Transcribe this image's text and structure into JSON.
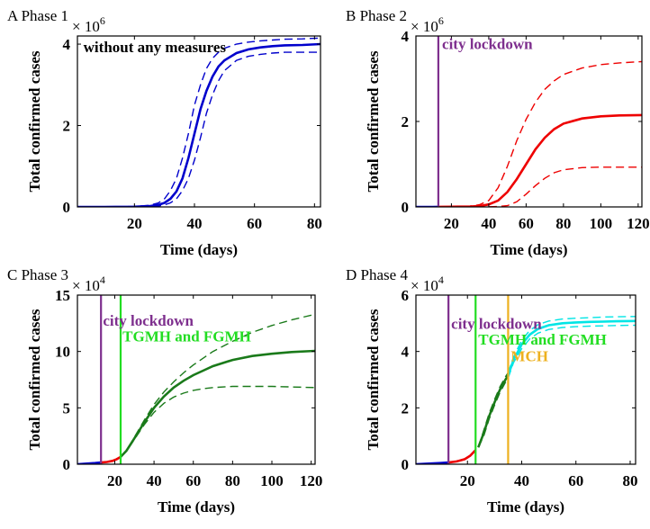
{
  "chart_data": [
    {
      "type": "line",
      "title": "A Phase 1",
      "xlabel": "Time (days)",
      "ylabel": "Total confirmed cases",
      "multiplier": "10",
      "multiplier_exp": "6",
      "xlim": [
        1,
        82
      ],
      "ylim": [
        0,
        4.2
      ],
      "xticks": [
        "20",
        "40",
        "60",
        "80"
      ],
      "yticks": [
        "0",
        "2",
        "4"
      ],
      "annotations": [
        {
          "text": "without any measures",
          "color": "#000000",
          "x": 3,
          "y": 3.8
        }
      ],
      "vlines": [],
      "series": [
        {
          "color": "#0000cc",
          "style": "solid",
          "x": [
            1,
            10,
            20,
            25,
            28,
            30,
            32,
            34,
            36,
            38,
            40,
            42,
            44,
            46,
            48,
            50,
            54,
            58,
            62,
            66,
            70,
            76,
            82
          ],
          "y": [
            0,
            0,
            0.005,
            0.02,
            0.05,
            0.1,
            0.2,
            0.38,
            0.7,
            1.2,
            1.8,
            2.4,
            2.85,
            3.2,
            3.45,
            3.6,
            3.78,
            3.87,
            3.92,
            3.95,
            3.97,
            3.98,
            4.0
          ]
        },
        {
          "color": "#0000cc",
          "style": "dashed",
          "x": [
            1,
            10,
            20,
            25,
            28,
            30,
            32,
            34,
            36,
            38,
            40,
            42,
            44,
            46,
            48,
            50,
            54,
            58,
            62,
            66,
            70,
            76,
            82
          ],
          "y": [
            0,
            0,
            0.01,
            0.04,
            0.1,
            0.2,
            0.4,
            0.7,
            1.2,
            1.8,
            2.5,
            3.0,
            3.4,
            3.65,
            3.8,
            3.9,
            4.0,
            4.05,
            4.08,
            4.1,
            4.12,
            4.13,
            4.15
          ]
        },
        {
          "color": "#0000cc",
          "style": "dashed",
          "x": [
            1,
            10,
            20,
            25,
            28,
            30,
            32,
            34,
            36,
            38,
            40,
            42,
            44,
            46,
            48,
            50,
            54,
            58,
            62,
            66,
            70,
            76,
            82
          ],
          "y": [
            0,
            0,
            0.002,
            0.01,
            0.02,
            0.05,
            0.1,
            0.2,
            0.4,
            0.7,
            1.15,
            1.7,
            2.3,
            2.75,
            3.1,
            3.35,
            3.6,
            3.7,
            3.75,
            3.78,
            3.8,
            3.8,
            3.8
          ]
        }
      ]
    },
    {
      "type": "line",
      "title": "B Phase 2",
      "xlabel": "Time (days)",
      "ylabel": "Total confirmed cases",
      "multiplier": "10",
      "multiplier_exp": "6",
      "xlim": [
        1,
        122
      ],
      "ylim": [
        0,
        4
      ],
      "xticks": [
        "20",
        "40",
        "60",
        "80",
        "100",
        "120"
      ],
      "yticks": [
        "0",
        "2",
        "4"
      ],
      "annotations": [
        {
          "text": "city lockdown",
          "color": "#7e2f8e",
          "x": 15,
          "y": 3.7
        }
      ],
      "vlines": [
        {
          "x": 13,
          "color": "#7e2f8e"
        }
      ],
      "series": [
        {
          "color": "#0000cc",
          "style": "solid",
          "x": [
            1,
            5,
            10,
            13
          ],
          "y": [
            0,
            0,
            0,
            0.002
          ]
        },
        {
          "color": "#ee0000",
          "style": "solid",
          "x": [
            13,
            20,
            30,
            35,
            40,
            45,
            50,
            55,
            60,
            65,
            70,
            75,
            80,
            90,
            100,
            110,
            122
          ],
          "y": [
            0.002,
            0.005,
            0.01,
            0.02,
            0.06,
            0.15,
            0.35,
            0.65,
            1.0,
            1.35,
            1.62,
            1.82,
            1.95,
            2.07,
            2.12,
            2.14,
            2.15
          ]
        },
        {
          "color": "#ee0000",
          "style": "dashed",
          "x": [
            13,
            20,
            30,
            35,
            40,
            45,
            50,
            55,
            60,
            65,
            70,
            75,
            80,
            90,
            100,
            110,
            122
          ],
          "y": [
            0.002,
            0.005,
            0.02,
            0.05,
            0.15,
            0.45,
            0.95,
            1.55,
            2.05,
            2.45,
            2.75,
            2.95,
            3.1,
            3.25,
            3.33,
            3.37,
            3.4
          ]
        },
        {
          "color": "#ee0000",
          "style": "dashed",
          "x": [
            13,
            30,
            40,
            45,
            50,
            55,
            60,
            65,
            70,
            75,
            80,
            90,
            100,
            110,
            122
          ],
          "y": [
            0.002,
            0.003,
            0.005,
            0.01,
            0.03,
            0.12,
            0.3,
            0.5,
            0.67,
            0.8,
            0.87,
            0.92,
            0.93,
            0.93,
            0.93
          ]
        }
      ]
    },
    {
      "type": "line",
      "title": "C Phase 3",
      "xlabel": "Time (days)",
      "ylabel": "Total confirmed cases",
      "multiplier": "10",
      "multiplier_exp": "4",
      "xlim": [
        1,
        122
      ],
      "ylim": [
        0,
        15
      ],
      "xticks": [
        "20",
        "40",
        "60",
        "80",
        "100",
        "120"
      ],
      "yticks": [
        "0",
        "5",
        "10",
        "15"
      ],
      "annotations": [
        {
          "text": "city lockdown",
          "color": "#7e2f8e",
          "x": 14,
          "y": 12.3
        },
        {
          "text": "TGMH and FGMH",
          "color": "#22dd22",
          "x": 24,
          "y": 10.9
        }
      ],
      "vlines": [
        {
          "x": 13,
          "color": "#7e2f8e"
        },
        {
          "x": 23,
          "color": "#22dd22"
        }
      ],
      "series": [
        {
          "color": "#0000cc",
          "style": "solid",
          "x": [
            1,
            5,
            10,
            13
          ],
          "y": [
            0,
            0.05,
            0.1,
            0.15
          ]
        },
        {
          "color": "#ee0000",
          "style": "solid",
          "x": [
            13,
            16,
            19,
            21,
            23
          ],
          "y": [
            0.15,
            0.2,
            0.3,
            0.45,
            0.65
          ]
        },
        {
          "color": "#1a7a1a",
          "style": "solid",
          "x": [
            23,
            26,
            30,
            35,
            40,
            45,
            50,
            55,
            60,
            65,
            70,
            80,
            90,
            100,
            110,
            122
          ],
          "y": [
            0.65,
            1.2,
            2.3,
            3.7,
            5.0,
            6.0,
            6.8,
            7.4,
            7.9,
            8.3,
            8.7,
            9.25,
            9.6,
            9.8,
            9.95,
            10.05
          ]
        },
        {
          "color": "#1a7a1a",
          "style": "dashed",
          "x": [
            23,
            26,
            30,
            35,
            40,
            45,
            50,
            55,
            60,
            65,
            70,
            80,
            90,
            100,
            110,
            122
          ],
          "y": [
            0.65,
            1.2,
            2.4,
            3.9,
            5.3,
            6.4,
            7.3,
            8.1,
            8.8,
            9.4,
            10.0,
            10.9,
            11.7,
            12.3,
            12.8,
            13.3
          ]
        },
        {
          "color": "#1a7a1a",
          "style": "dashed",
          "x": [
            23,
            26,
            30,
            35,
            40,
            45,
            50,
            55,
            60,
            65,
            70,
            80,
            90,
            100,
            110,
            122
          ],
          "y": [
            0.65,
            1.15,
            2.2,
            3.5,
            4.6,
            5.4,
            5.95,
            6.3,
            6.55,
            6.7,
            6.8,
            6.9,
            6.9,
            6.9,
            6.85,
            6.8
          ]
        }
      ]
    },
    {
      "type": "line",
      "title": "D Phase 4",
      "xlabel": "Time (days)",
      "ylabel": "Total confirmed cases",
      "multiplier": "10",
      "multiplier_exp": "4",
      "xlim": [
        1,
        82
      ],
      "ylim": [
        0,
        6
      ],
      "xticks": [
        "20",
        "40",
        "60",
        "80"
      ],
      "yticks": [
        "0",
        "2",
        "4",
        "6"
      ],
      "annotations": [
        {
          "text": "city lockdown",
          "color": "#7e2f8e",
          "x": 14,
          "y": 4.8
        },
        {
          "text": "TGMH and FGMH",
          "color": "#22dd22",
          "x": 24,
          "y": 4.25
        },
        {
          "text": "MCH",
          "color": "#edb120",
          "x": 36,
          "y": 3.65
        }
      ],
      "vlines": [
        {
          "x": 13,
          "color": "#7e2f8e"
        },
        {
          "x": 23,
          "color": "#22dd22"
        },
        {
          "x": 35,
          "color": "#edb120"
        }
      ],
      "series": [
        {
          "color": "#0000cc",
          "style": "solid",
          "x": [
            1,
            5,
            10,
            13
          ],
          "y": [
            0,
            0.02,
            0.04,
            0.06
          ]
        },
        {
          "color": "#ee0000",
          "style": "solid",
          "x": [
            13,
            16,
            19,
            21,
            23
          ],
          "y": [
            0.06,
            0.1,
            0.18,
            0.3,
            0.5
          ]
        },
        {
          "color": "#1a7a1a",
          "style": "solid",
          "x": [
            24,
            26,
            28,
            30,
            32,
            34,
            35
          ],
          "y": [
            0.6,
            1.1,
            1.7,
            2.2,
            2.65,
            3.0,
            3.15
          ]
        },
        {
          "color": "#1a7a1a",
          "style": "dashed",
          "x": [
            24,
            26,
            28,
            30,
            32,
            34,
            35
          ],
          "y": [
            0.6,
            1.2,
            1.8,
            2.3,
            2.75,
            3.1,
            3.25
          ]
        },
        {
          "color": "#1a7a1a",
          "style": "dashed",
          "x": [
            24,
            26,
            28,
            30,
            32,
            34,
            35
          ],
          "y": [
            0.6,
            1.0,
            1.6,
            2.1,
            2.55,
            2.9,
            3.05
          ]
        },
        {
          "color": "#00e5e5",
          "style": "solid",
          "x": [
            35,
            37,
            40,
            43,
            46,
            50,
            55,
            60,
            65,
            70,
            75,
            82
          ],
          "y": [
            3.15,
            3.7,
            4.25,
            4.6,
            4.8,
            4.93,
            5.0,
            5.03,
            5.05,
            5.06,
            5.07,
            5.08
          ]
        },
        {
          "color": "#00e5e5",
          "style": "dashed",
          "x": [
            35,
            37,
            40,
            43,
            46,
            50,
            55,
            60,
            65,
            70,
            75,
            82
          ],
          "y": [
            3.25,
            3.8,
            4.4,
            4.75,
            4.95,
            5.08,
            5.15,
            5.18,
            5.2,
            5.22,
            5.23,
            5.24
          ]
        },
        {
          "color": "#00e5e5",
          "style": "dashed",
          "x": [
            35,
            37,
            40,
            43,
            46,
            50,
            55,
            60,
            65,
            70,
            75,
            82
          ],
          "y": [
            3.05,
            3.6,
            4.1,
            4.45,
            4.65,
            4.78,
            4.85,
            4.88,
            4.9,
            4.91,
            4.92,
            4.93
          ]
        }
      ]
    }
  ]
}
